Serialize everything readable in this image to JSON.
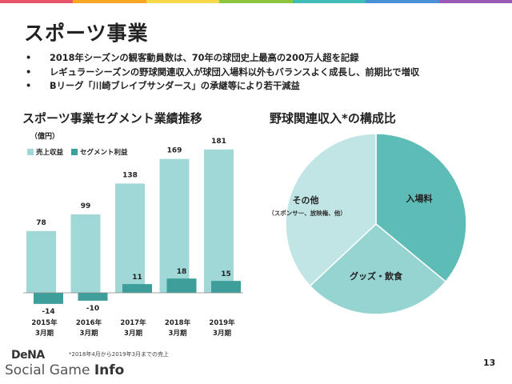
{
  "slide": {
    "title": "スポーツ事業",
    "bullets": [
      "2018年シーズンの観客動員数は、70年の球団史上最高の200万人超を記録",
      "レギュラーシーズンの野球関連収入が球団入場料以外もバランスよく成長し、前期比で増収",
      "Bリーグ「川崎ブレイブサンダース」の承継等により若干減益"
    ],
    "bullet_marker": "•",
    "page_number": "13",
    "footnote": "*2018年4月から2019年3月までの売上",
    "logo": {
      "brand": "DeNA",
      "watermark_main": "Social Game ",
      "watermark_bold": "Info"
    }
  },
  "colors": {
    "revenue": "#9fd8d6",
    "profit": "#3e9e99",
    "pie_admission": "#5dbdb6",
    "pie_goods": "#96d4d1",
    "pie_other": "#c0e5e4",
    "stripe": [
      "#e9546b",
      "#f6a623",
      "#f8d84a",
      "#8cc63f",
      "#3ebdb6",
      "#4a90d9",
      "#9b59b6"
    ]
  },
  "chart_data": [
    {
      "type": "bar",
      "title": "スポーツ事業セグメント業績推移",
      "unit_label": "（億円）",
      "categories": [
        [
          "2015年",
          "3月期"
        ],
        [
          "2016年",
          "3月期"
        ],
        [
          "2017年",
          "3月期"
        ],
        [
          "2018年",
          "3月期"
        ],
        [
          "2019年",
          "3月期"
        ]
      ],
      "series": [
        {
          "name": "売上収益",
          "values": [
            78,
            99,
            138,
            169,
            181
          ]
        },
        {
          "name": "セグメント利益",
          "values": [
            -14,
            -10,
            11,
            18,
            15
          ]
        }
      ],
      "ylim": [
        -14,
        181
      ],
      "legend": "top-left",
      "grid": false
    },
    {
      "type": "pie",
      "title": "野球関連収入*の構成比",
      "slices": [
        {
          "label": "入場料",
          "sublabel": "",
          "value": 36
        },
        {
          "label": "グッズ・飲食",
          "sublabel": "",
          "value": 27
        },
        {
          "label": "その他",
          "sublabel": "（スポンサー、放映権、他）",
          "value": 37
        }
      ]
    }
  ]
}
